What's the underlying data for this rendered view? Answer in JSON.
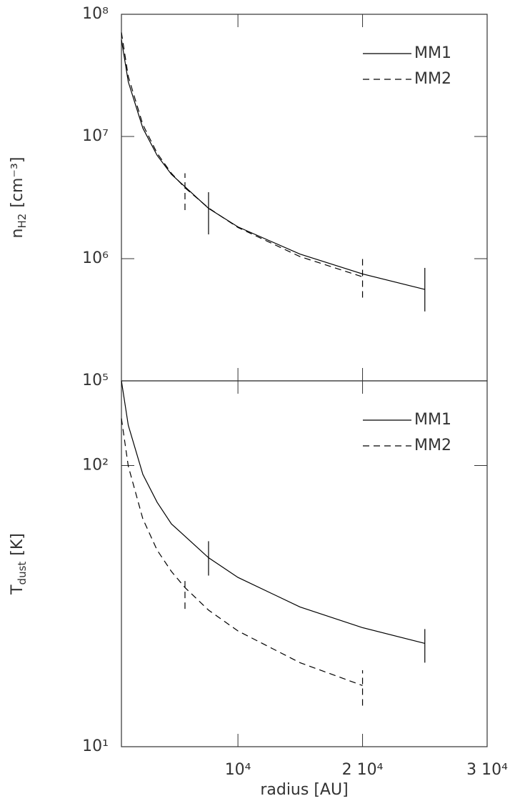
{
  "chart_data": [
    {
      "type": "line",
      "log_y": true,
      "legend": "upper right",
      "y_label": "n",
      "y_label_sub": "H2",
      "y_label_unit": "[cm⁻³]",
      "xlim": [
        650,
        30000
      ],
      "xticks": [
        10000,
        20000,
        30000
      ],
      "ylim": [
        100000,
        100000000
      ],
      "yticks": [
        {
          "value": 100000,
          "label": "10⁵"
        },
        {
          "value": 1000000,
          "label": "10⁶"
        },
        {
          "value": 10000000,
          "label": "10⁷"
        },
        {
          "value": 100000000,
          "label": "10⁸"
        }
      ],
      "series": [
        {
          "name": "MM1",
          "color": "#000000",
          "dash": "solid",
          "x": [
            650,
            1200,
            2369,
            3515,
            4661,
            7641,
            10000,
            14977,
            20000,
            25000
          ],
          "values": [
            62000000,
            28000000,
            11700000,
            7000000,
            4900000,
            2580000,
            1820000,
            1090000,
            750000,
            560000
          ],
          "error_bars": [
            {
              "x": 7641,
              "low": 1580000,
              "high": 3500000
            },
            {
              "x": 25000,
              "low": 370000,
              "high": 840000
            }
          ]
        },
        {
          "name": "MM2",
          "color": "#000000",
          "dash": "dashed",
          "x": [
            650,
            1200,
            2369,
            3515,
            4661,
            5750,
            7641,
            10000,
            14977,
            20000
          ],
          "values": [
            71000000,
            31000000,
            12500000,
            7300000,
            5000000,
            3800000,
            2600000,
            1800000,
            1040000,
            710000
          ],
          "error_bars": [
            {
              "x": 5750,
              "low": 2500000,
              "high": 5000000
            },
            {
              "x": 20000,
              "low": 480000,
              "high": 1070000
            }
          ]
        }
      ]
    },
    {
      "type": "line",
      "log_y": true,
      "legend": "upper right",
      "y_label": "T",
      "y_label_sub": "dust",
      "y_label_unit": "[K]",
      "x_label": "radius [AU]",
      "xlim": [
        650,
        30000
      ],
      "xticks": [
        {
          "value": 10000,
          "label": "10⁴"
        },
        {
          "value": 20000,
          "label": "2 10⁴"
        },
        {
          "value": 30000,
          "label": "3 10⁴"
        }
      ],
      "ylim": [
        10,
        200
      ],
      "yticks": [
        {
          "value": 10,
          "label": "10¹"
        },
        {
          "value": 100,
          "label": "10²"
        }
      ],
      "series": [
        {
          "name": "MM1",
          "color": "#000000",
          "dash": "solid",
          "x": [
            650,
            1200,
            2369,
            3515,
            4661,
            7641,
            10000,
            14977,
            20000,
            25000
          ],
          "values": [
            200,
            139,
            93,
            74,
            62,
            47,
            40,
            31.4,
            26.5,
            23.3
          ],
          "error_bars": [
            {
              "x": 7641,
              "low": 40.6,
              "high": 53.8
            },
            {
              "x": 25000,
              "low": 19.9,
              "high": 26.2
            }
          ]
        },
        {
          "name": "MM2",
          "color": "#000000",
          "dash": "dashed",
          "x": [
            650,
            1200,
            2369,
            3515,
            4661,
            5750,
            7641,
            10000,
            14977,
            20000
          ],
          "values": [
            147,
            99.5,
            64.6,
            50,
            42,
            36.8,
            30.6,
            25.8,
            19.9,
            16.5
          ],
          "error_bars": [
            {
              "x": 5750,
              "low": 30.9,
              "high": 39
            },
            {
              "x": 20000,
              "low": 14,
              "high": 18.7
            }
          ]
        }
      ]
    }
  ]
}
